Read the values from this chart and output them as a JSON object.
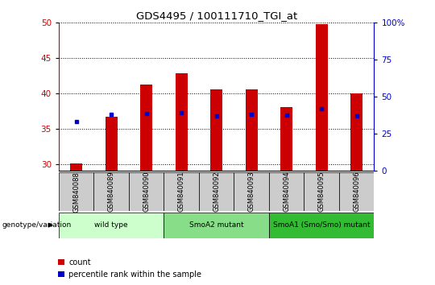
{
  "title": "GDS4495 / 100111710_TGI_at",
  "samples": [
    "GSM840088",
    "GSM840089",
    "GSM840090",
    "GSM840091",
    "GSM840092",
    "GSM840093",
    "GSM840094",
    "GSM840095",
    "GSM840096"
  ],
  "count_values": [
    30.1,
    36.7,
    41.3,
    42.8,
    40.6,
    40.6,
    38.1,
    49.8,
    40.0
  ],
  "percentile_values": [
    36.0,
    37.0,
    37.2,
    37.3,
    36.8,
    37.0,
    36.9,
    37.8,
    36.8
  ],
  "ylim_left": [
    29,
    50
  ],
  "ylim_right": [
    0,
    100
  ],
  "yticks_left": [
    30,
    35,
    40,
    45,
    50
  ],
  "yticks_right": [
    0,
    25,
    50,
    75,
    100
  ],
  "yticklabels_right": [
    "0",
    "25",
    "50",
    "75",
    "100%"
  ],
  "bar_color": "#cc0000",
  "dot_color": "#0000cc",
  "bar_width": 0.35,
  "groups": [
    {
      "label": "wild type",
      "start": 0,
      "end": 3,
      "color": "#ccffcc"
    },
    {
      "label": "SmoA2 mutant",
      "start": 3,
      "end": 6,
      "color": "#88dd88"
    },
    {
      "label": "SmoA1 (Smo/Smo) mutant",
      "start": 6,
      "end": 9,
      "color": "#33bb33"
    }
  ],
  "group_row_label": "genotype/variation",
  "legend_count": "count",
  "legend_percentile": "percentile rank within the sample",
  "sample_bg_color": "#cccccc"
}
